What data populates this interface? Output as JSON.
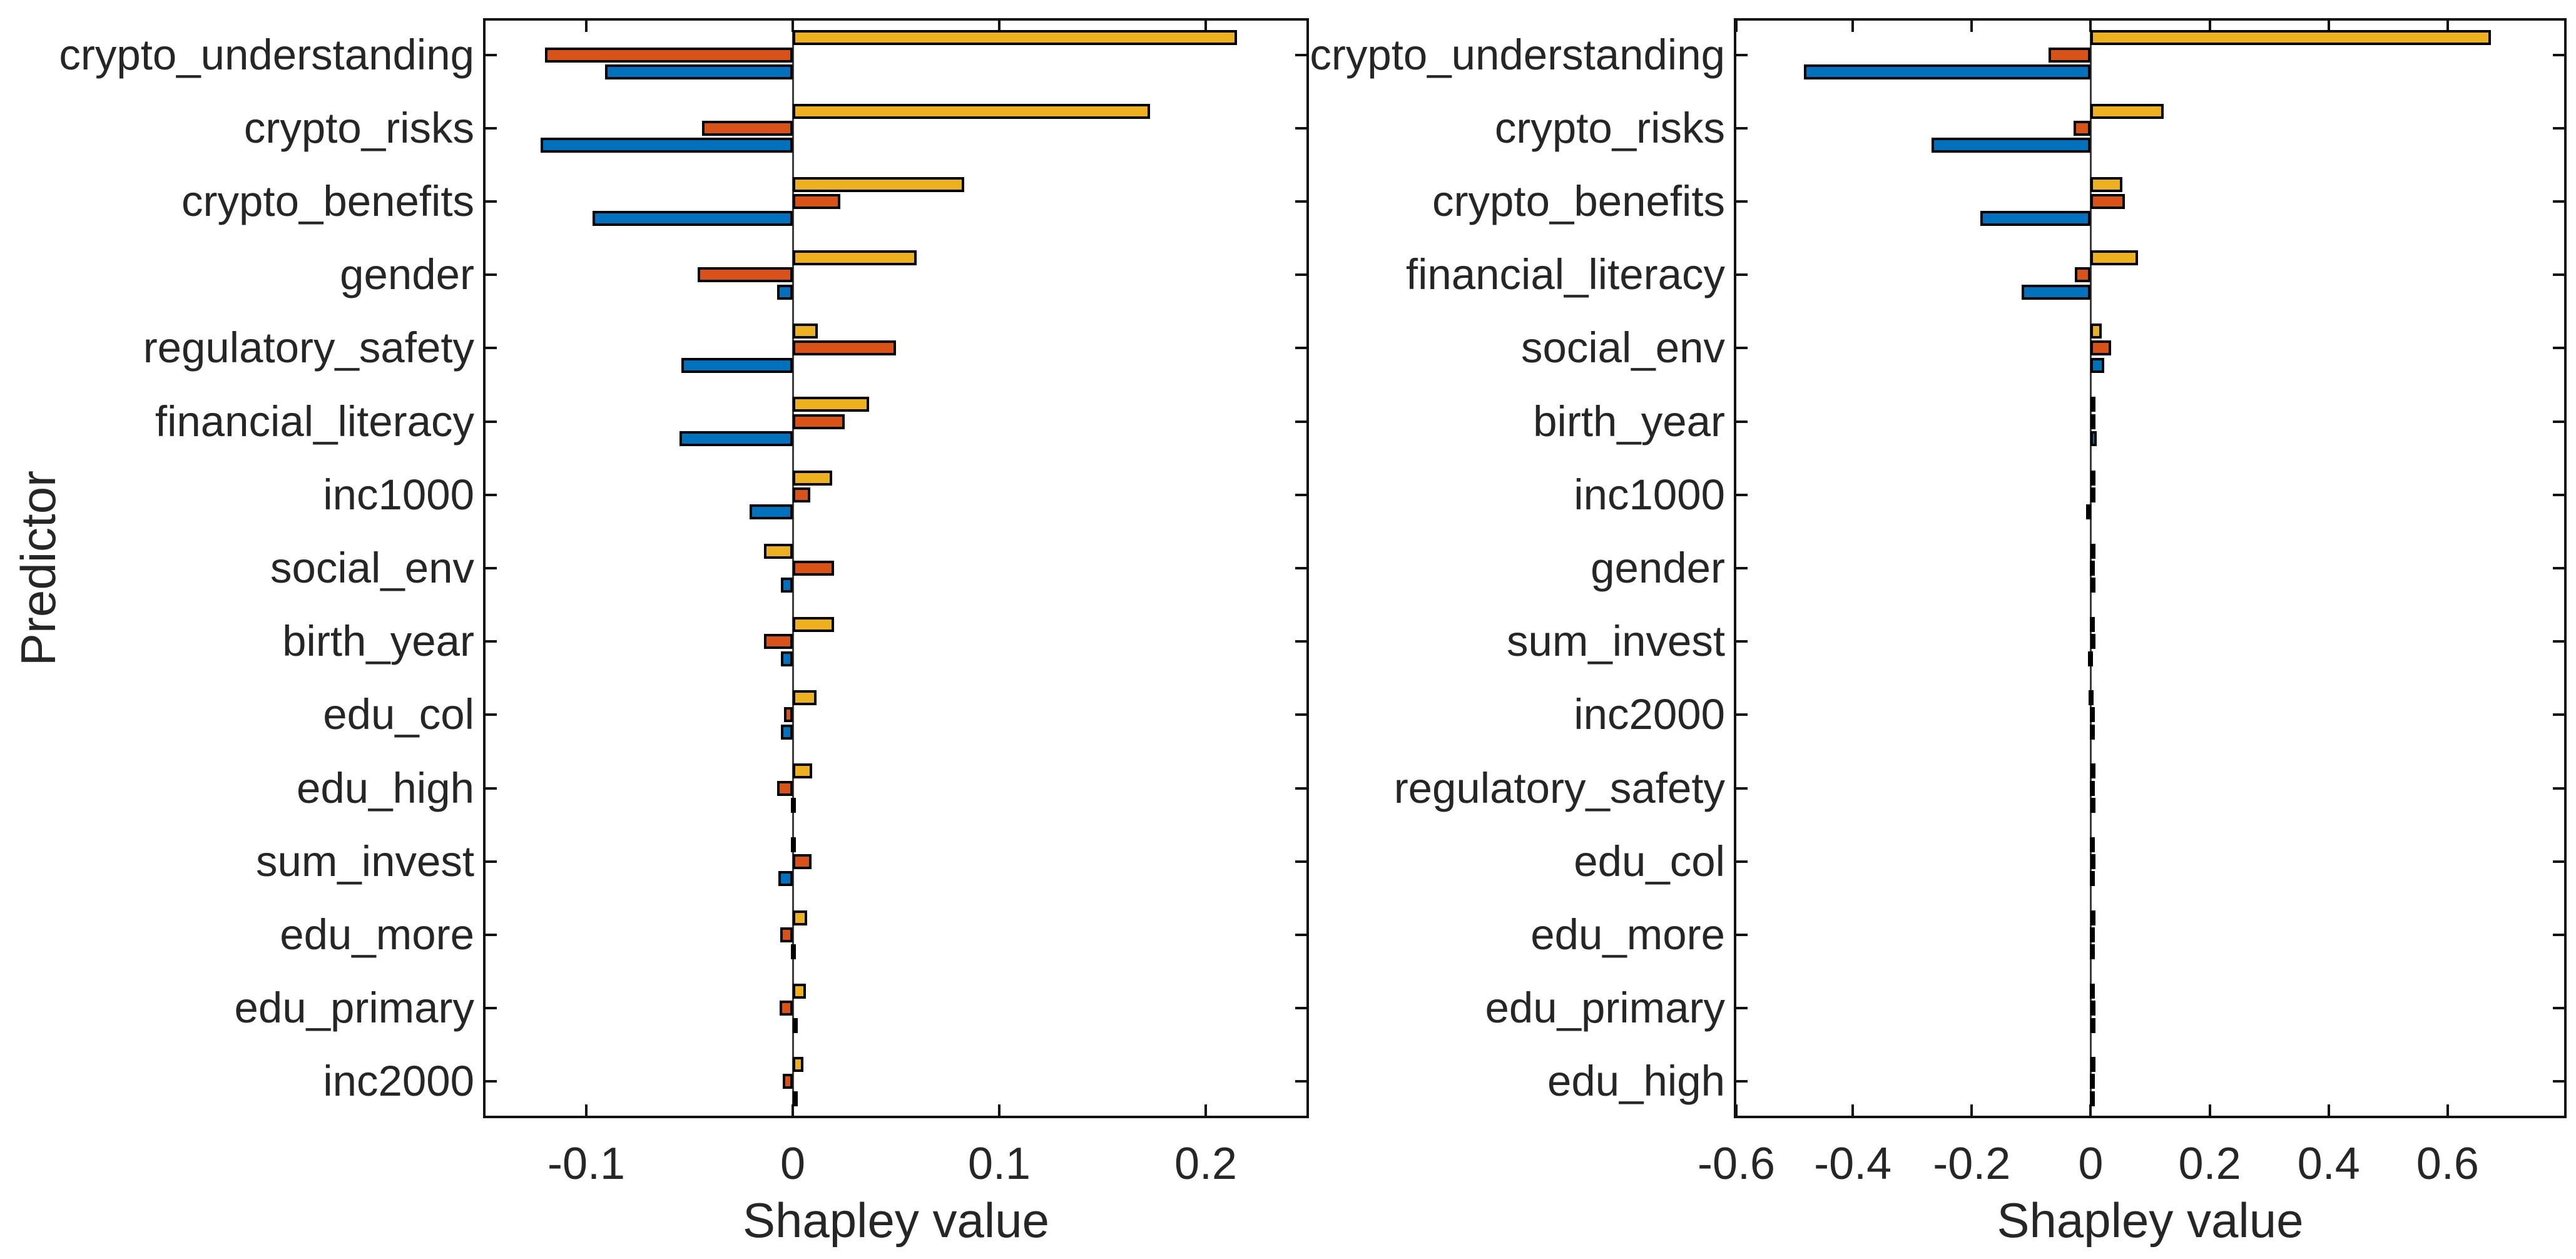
{
  "figure": {
    "background": "#ffffff"
  },
  "colors": {
    "series_yellow": "#EDB120",
    "series_orange": "#D95319",
    "series_blue": "#0072BD",
    "bar_edge": "#000000",
    "axis": "#111111",
    "baseline": "#3c3c3c",
    "text": "#262626"
  },
  "chart_data": [
    {
      "type": "bar",
      "orientation": "horizontal",
      "title": "",
      "xlabel": "Shapley value",
      "ylabel": "Predictor",
      "grid": false,
      "legend": "none",
      "xlim": [
        -0.15,
        0.25
      ],
      "xticks": [
        -0.1,
        0,
        0.1,
        0.2
      ],
      "xtick_labels": [
        "-0.1",
        "0",
        "0.1",
        "0.2"
      ],
      "categories": [
        "crypto_understanding",
        "crypto_risks",
        "crypto_benefits",
        "gender",
        "regulatory_safety",
        "financial_literacy",
        "inc1000",
        "social_env",
        "birth_year",
        "edu_col",
        "edu_high",
        "sum_invest",
        "edu_more",
        "edu_primary",
        "inc2000"
      ],
      "series": [
        {
          "name": "yellow",
          "color_key": "series_yellow",
          "values": [
            0.215,
            0.173,
            0.083,
            0.06,
            0.012,
            0.037,
            0.019,
            -0.014,
            0.02,
            0.0115,
            0.0095,
            -0.001,
            0.007,
            0.0065,
            0.005
          ]
        },
        {
          "name": "orange",
          "color_key": "series_orange",
          "values": [
            -0.12,
            -0.044,
            0.023,
            -0.046,
            0.05,
            0.025,
            0.0085,
            0.02,
            -0.014,
            -0.0042,
            -0.0077,
            0.009,
            -0.006,
            -0.0065,
            -0.005
          ]
        },
        {
          "name": "blue",
          "color_key": "series_blue",
          "values": [
            -0.091,
            -0.122,
            -0.097,
            -0.0076,
            -0.054,
            -0.055,
            -0.021,
            -0.0057,
            -0.0057,
            -0.0057,
            -0.001,
            -0.007,
            -0.001,
            0.0017,
            0.002
          ]
        }
      ]
    },
    {
      "type": "bar",
      "orientation": "horizontal",
      "title": "",
      "xlabel": "Shapley value",
      "ylabel": "",
      "grid": false,
      "legend": "none",
      "xlim": [
        -0.6,
        0.8
      ],
      "xticks": [
        -0.6,
        -0.4,
        -0.2,
        0,
        0.2,
        0.4,
        0.6
      ],
      "xtick_labels": [
        "-0.6",
        "-0.4",
        "-0.2",
        "0",
        "0.2",
        "0.4",
        "0.6"
      ],
      "categories": [
        "crypto_understanding",
        "crypto_risks",
        "crypto_benefits",
        "financial_literacy",
        "social_env",
        "birth_year",
        "inc1000",
        "gender",
        "sum_invest",
        "inc2000",
        "regulatory_safety",
        "edu_col",
        "edu_more",
        "edu_primary",
        "edu_high"
      ],
      "series": [
        {
          "name": "yellow",
          "color_key": "series_yellow",
          "values": [
            0.673,
            0.123,
            0.053,
            0.08,
            0.019,
            0.001,
            0.001,
            0.006,
            -0.001,
            -0.004,
            0.001,
            -0.001,
            0.001,
            -0.001,
            0.001
          ]
        },
        {
          "name": "orange",
          "color_key": "series_orange",
          "values": [
            -0.071,
            -0.029,
            0.057,
            -0.027,
            0.034,
            0.002,
            0.006,
            -0.001,
            0.006,
            -0.002,
            -0.002,
            0.002,
            -0.002,
            0.002,
            -0.001
          ]
        },
        {
          "name": "blue",
          "color_key": "series_blue",
          "values": [
            -0.482,
            -0.268,
            -0.186,
            -0.116,
            0.023,
            0.01,
            -0.008,
            0.001,
            -0.005,
            -0.001,
            0.001,
            -0.001,
            -0.001,
            0.001,
            -0.001
          ]
        }
      ]
    }
  ]
}
